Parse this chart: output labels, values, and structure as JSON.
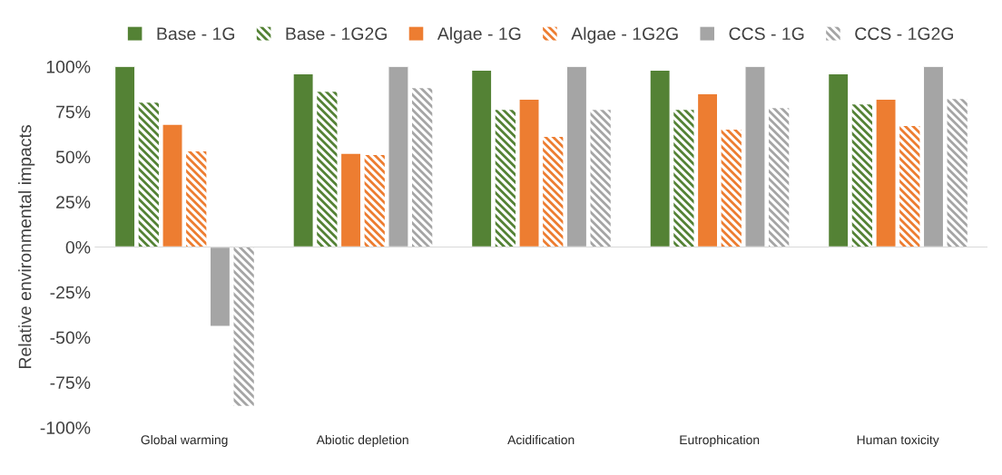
{
  "chart_data": {
    "type": "bar",
    "ylabel": "Relative environmental impacts",
    "categories": [
      "Global warming",
      "Abiotic depletion",
      "Acidification",
      "Eutrophication",
      "Human toxicity"
    ],
    "series": [
      {
        "name": "Base - 1G",
        "color": "#548235",
        "values": [
          100,
          96,
          98,
          98,
          96
        ]
      },
      {
        "name": "Base - 1G2G",
        "color": "#548235",
        "line_style": "dashed",
        "values": [
          80,
          86,
          76,
          76,
          79
        ]
      },
      {
        "name": "Algae - 1G",
        "color": "#ed7d31",
        "values": [
          68,
          52,
          82,
          85,
          82
        ]
      },
      {
        "name": "Algae - 1G2G",
        "color": "#ed7d31",
        "line_style": "dashed",
        "values": [
          53,
          51,
          61,
          65,
          67
        ]
      },
      {
        "name": "CCS - 1G",
        "color": "#a5a5a5",
        "values": [
          -44,
          100,
          100,
          100,
          100
        ]
      },
      {
        "name": "CCS - 1G2G",
        "color": "#a5a5a5",
        "line_style": "dashed",
        "values": [
          -88,
          88,
          76,
          77,
          82
        ]
      }
    ],
    "ylim": [
      -100,
      100
    ],
    "yticks": [
      {
        "value": -100,
        "label": "-100%"
      },
      {
        "value": -75,
        "label": "-75%"
      },
      {
        "value": -50,
        "label": "-50%"
      },
      {
        "value": -25,
        "label": "-25%"
      },
      {
        "value": 0,
        "label": "0%"
      },
      {
        "value": 25,
        "label": "25%"
      },
      {
        "value": 50,
        "label": "50%"
      },
      {
        "value": 75,
        "label": "75%"
      },
      {
        "value": 100,
        "label": "100%"
      }
    ],
    "legend": "top"
  }
}
